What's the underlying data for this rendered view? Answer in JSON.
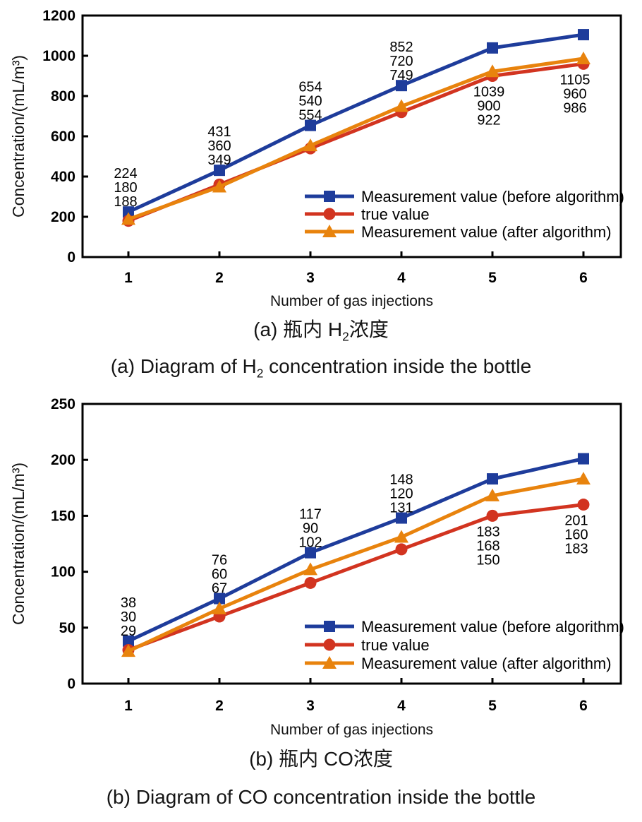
{
  "captions": {
    "a_zh": {
      "pre": "(a) 瓶内 H",
      "sub": "2",
      "post": "浓度"
    },
    "a_en": {
      "pre": "(a) Diagram of H",
      "sub": "2",
      "post": " concentration inside the bottle"
    },
    "b_zh": {
      "pre": "(b) 瓶内 CO浓度",
      "sub": "",
      "post": ""
    },
    "b_en": {
      "pre": "(b) Diagram of CO concentration inside the bottle",
      "sub": "",
      "post": ""
    }
  },
  "colors": {
    "before": {
      "line": "#1e3c9b",
      "label": "#3d57b0"
    },
    "true": {
      "line": "#d23420",
      "label": "#d8452f"
    },
    "after": {
      "line": "#e8830d",
      "label": "#e89414"
    },
    "axis": "#000000"
  },
  "chart_data": [
    {
      "id": "h2",
      "type": "line",
      "title": "(a) Diagram of H2 concentration inside the bottle",
      "x": [
        1,
        2,
        3,
        4,
        5,
        6
      ],
      "xlabel": "Number of gas injections",
      "ylabel": "Concentration/(mL/m³)",
      "ylim": [
        0,
        1200
      ],
      "yticks": [
        0,
        200,
        400,
        600,
        800,
        1000,
        1200
      ],
      "grid": false,
      "legend_position": "inside lower right",
      "series": [
        {
          "name": "Measurement value (before algorithm)",
          "marker": "square",
          "color_key": "before",
          "values": [
            224,
            431,
            654,
            852,
            1039,
            1105
          ]
        },
        {
          "name": "true value",
          "marker": "circle",
          "color_key": "true",
          "values": [
            180,
            360,
            540,
            720,
            900,
            960
          ]
        },
        {
          "name": "Measurement value (after algorithm)",
          "marker": "triangle",
          "color_key": "after",
          "values": [
            188,
            349,
            554,
            749,
            922,
            986
          ]
        }
      ],
      "point_labels": {
        "side": [
          "above",
          "above",
          "above",
          "above",
          "below",
          "below"
        ],
        "order": [
          [
            0,
            1,
            2
          ],
          [
            0,
            1,
            2
          ],
          [
            0,
            1,
            2
          ],
          [
            0,
            1,
            2
          ],
          [
            0,
            1,
            2
          ],
          [
            0,
            1,
            2
          ]
        ],
        "dx": [
          -4,
          0,
          0,
          0,
          -5,
          -12
        ]
      }
    },
    {
      "id": "co",
      "type": "line",
      "title": "(b) Diagram of CO concentration inside the bottle",
      "x": [
        1,
        2,
        3,
        4,
        5,
        6
      ],
      "xlabel": "Number of gas injections",
      "ylabel": "Concentration/(mL/m³)",
      "ylim": [
        0,
        250
      ],
      "yticks": [
        0,
        50,
        100,
        150,
        200,
        250
      ],
      "grid": false,
      "legend_position": "inside lower right",
      "series": [
        {
          "name": "Measurement value (before algorithm)",
          "marker": "square",
          "color_key": "before",
          "values": [
            38,
            76,
            117,
            148,
            183,
            201
          ]
        },
        {
          "name": "true value",
          "marker": "circle",
          "color_key": "true",
          "values": [
            30,
            60,
            90,
            120,
            150,
            160
          ]
        },
        {
          "name": "Measurement value (after algorithm)",
          "marker": "triangle",
          "color_key": "after",
          "values": [
            29,
            67,
            102,
            131,
            168,
            183
          ]
        }
      ],
      "point_labels": {
        "side": [
          "above",
          "above",
          "above",
          "above",
          "below",
          "below"
        ],
        "order": [
          [
            0,
            1,
            2
          ],
          [
            0,
            1,
            2
          ],
          [
            0,
            1,
            2
          ],
          [
            0,
            1,
            2
          ],
          [
            0,
            2,
            1
          ],
          [
            0,
            1,
            2
          ]
        ],
        "dx": [
          0,
          0,
          0,
          0,
          -6,
          -10
        ]
      }
    }
  ]
}
